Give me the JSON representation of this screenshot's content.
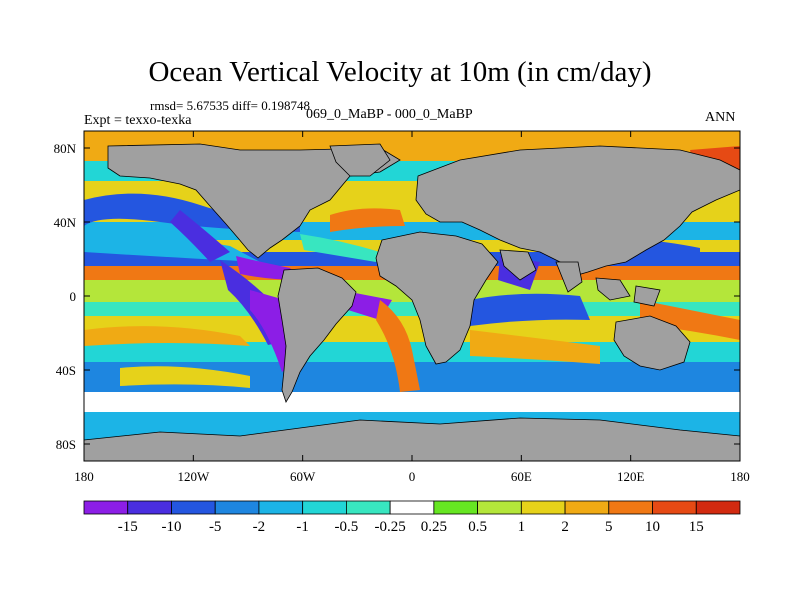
{
  "title": "Ocean Vertical Velocity at 10m (in cm/day)",
  "rmsd_line": "rmsd= 5.67535 diff= 0.198748",
  "cases_line": "069_0_MaBP - 000_0_MaBP",
  "expt_line": "Expt = texxo-texka",
  "season": "ANN",
  "lat_ticks": [
    "80N",
    "40N",
    "0",
    "40S",
    "80S"
  ],
  "lon_ticks": [
    "180",
    "120W",
    "60W",
    "0",
    "60E",
    "120E",
    "180"
  ],
  "colorbar": {
    "labels": [
      "-15",
      "-10",
      "-5",
      "-2",
      "-1",
      "-0.5",
      "-0.25",
      "0.25",
      "0.5",
      "1",
      "2",
      "5",
      "10",
      "15"
    ],
    "colors": [
      "#8c1ee6",
      "#4a2ee0",
      "#2456e0",
      "#1e86e0",
      "#1cb4e6",
      "#22d6d6",
      "#38e6c0",
      "#ffffff",
      "#66e622",
      "#b4e63a",
      "#e6d21a",
      "#f0aa14",
      "#f07814",
      "#e64a14",
      "#d22a10"
    ]
  },
  "land_color": "#a0a0a0"
}
